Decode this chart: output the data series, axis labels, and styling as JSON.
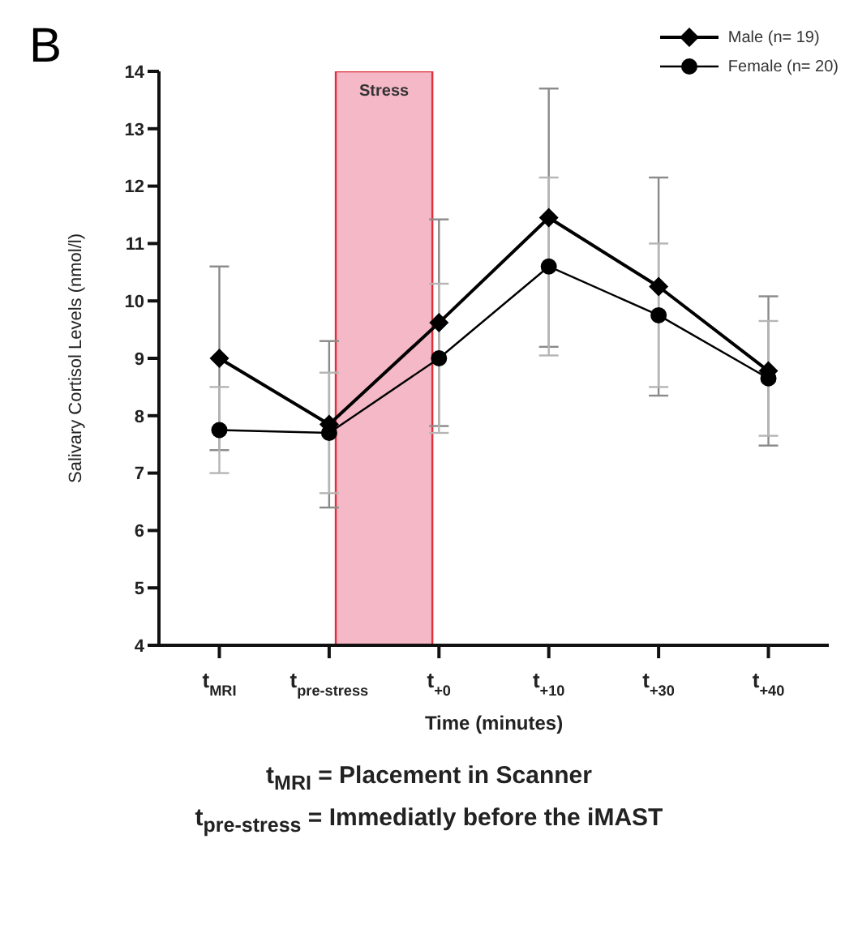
{
  "chart_data": {
    "type": "line",
    "xlabel": "Time (minutes)",
    "ylabel": "Salivary Cortisol Levels (nmol/l)",
    "categories": [
      "t$_{MRI}$",
      "t$_{pre-stress}$",
      "t$_{+0}$",
      "t$_{+10}$",
      "t$_{+30}$",
      "t$_{+40}$"
    ],
    "series": [
      {
        "name": "Male (n= 19)",
        "color": "#000000",
        "marker": "diamond",
        "values": [
          9.0,
          7.85,
          9.62,
          11.45,
          10.25,
          8.78
        ],
        "errors": [
          1.6,
          1.45,
          1.8,
          2.25,
          1.9,
          1.3
        ]
      },
      {
        "name": "Female (n= 20)",
        "color": "#000000",
        "marker": "circle",
        "values": [
          7.75,
          7.7,
          9.0,
          10.6,
          9.75,
          8.65
        ],
        "errors": [
          0.75,
          1.05,
          1.3,
          1.55,
          1.25,
          1.0
        ]
      }
    ],
    "ylim": [
      4,
      14
    ],
    "yticks": [
      4,
      5,
      6,
      7,
      8,
      9,
      10,
      11,
      12,
      13,
      14
    ],
    "grid": false,
    "legend": "top right",
    "bands": [
      {
        "axis": "x",
        "from": "t$_{pre-stress}$",
        "to": "t$_{+0}$",
        "label": "Stress",
        "color": "#f4b8c6"
      }
    ],
    "annotations": [
      "B",
      "t$_{MRI}$ = Placement in Scanner",
      "t$_{pre-stress}$ = Immediatly before the iMAST"
    ]
  }
}
